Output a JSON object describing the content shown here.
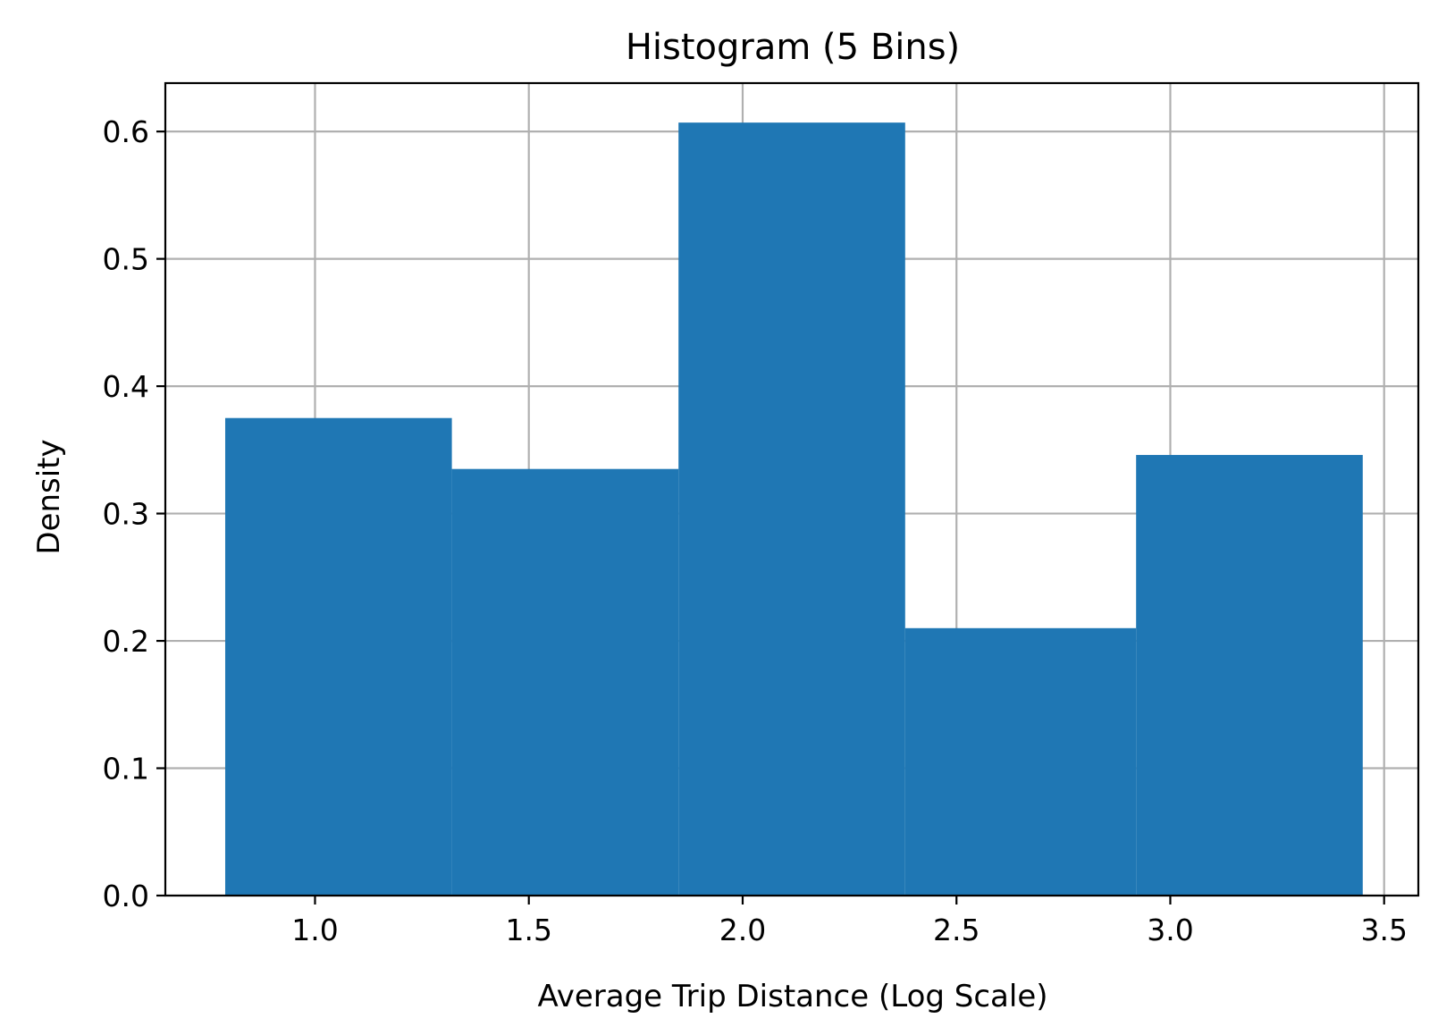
{
  "chart_data": {
    "type": "bar",
    "title": "Histogram (5 Bins)",
    "xlabel": "Average Trip Distance (Log Scale)",
    "ylabel": "Density",
    "bins": [
      {
        "x0": 0.79,
        "x1": 1.32,
        "value": 0.375
      },
      {
        "x0": 1.32,
        "x1": 1.85,
        "value": 0.335
      },
      {
        "x0": 1.85,
        "x1": 2.38,
        "value": 0.607
      },
      {
        "x0": 2.38,
        "x1": 2.92,
        "value": 0.21
      },
      {
        "x0": 2.92,
        "x1": 3.45,
        "value": 0.346
      }
    ],
    "xlim": [
      0.65,
      3.58
    ],
    "ylim": [
      0,
      0.638
    ],
    "xticks": [
      1.0,
      1.5,
      2.0,
      2.5,
      3.0,
      3.5
    ],
    "xtick_labels": [
      "1.0",
      "1.5",
      "2.0",
      "2.5",
      "3.0",
      "3.5"
    ],
    "yticks": [
      0.0,
      0.1,
      0.2,
      0.3,
      0.4,
      0.5,
      0.6
    ],
    "ytick_labels": [
      "0.0",
      "0.1",
      "0.2",
      "0.3",
      "0.4",
      "0.5",
      "0.6"
    ],
    "grid": true,
    "colors": {
      "bar": "#1f77b4",
      "grid": "#b0b0b0",
      "axes": "#000000"
    }
  }
}
